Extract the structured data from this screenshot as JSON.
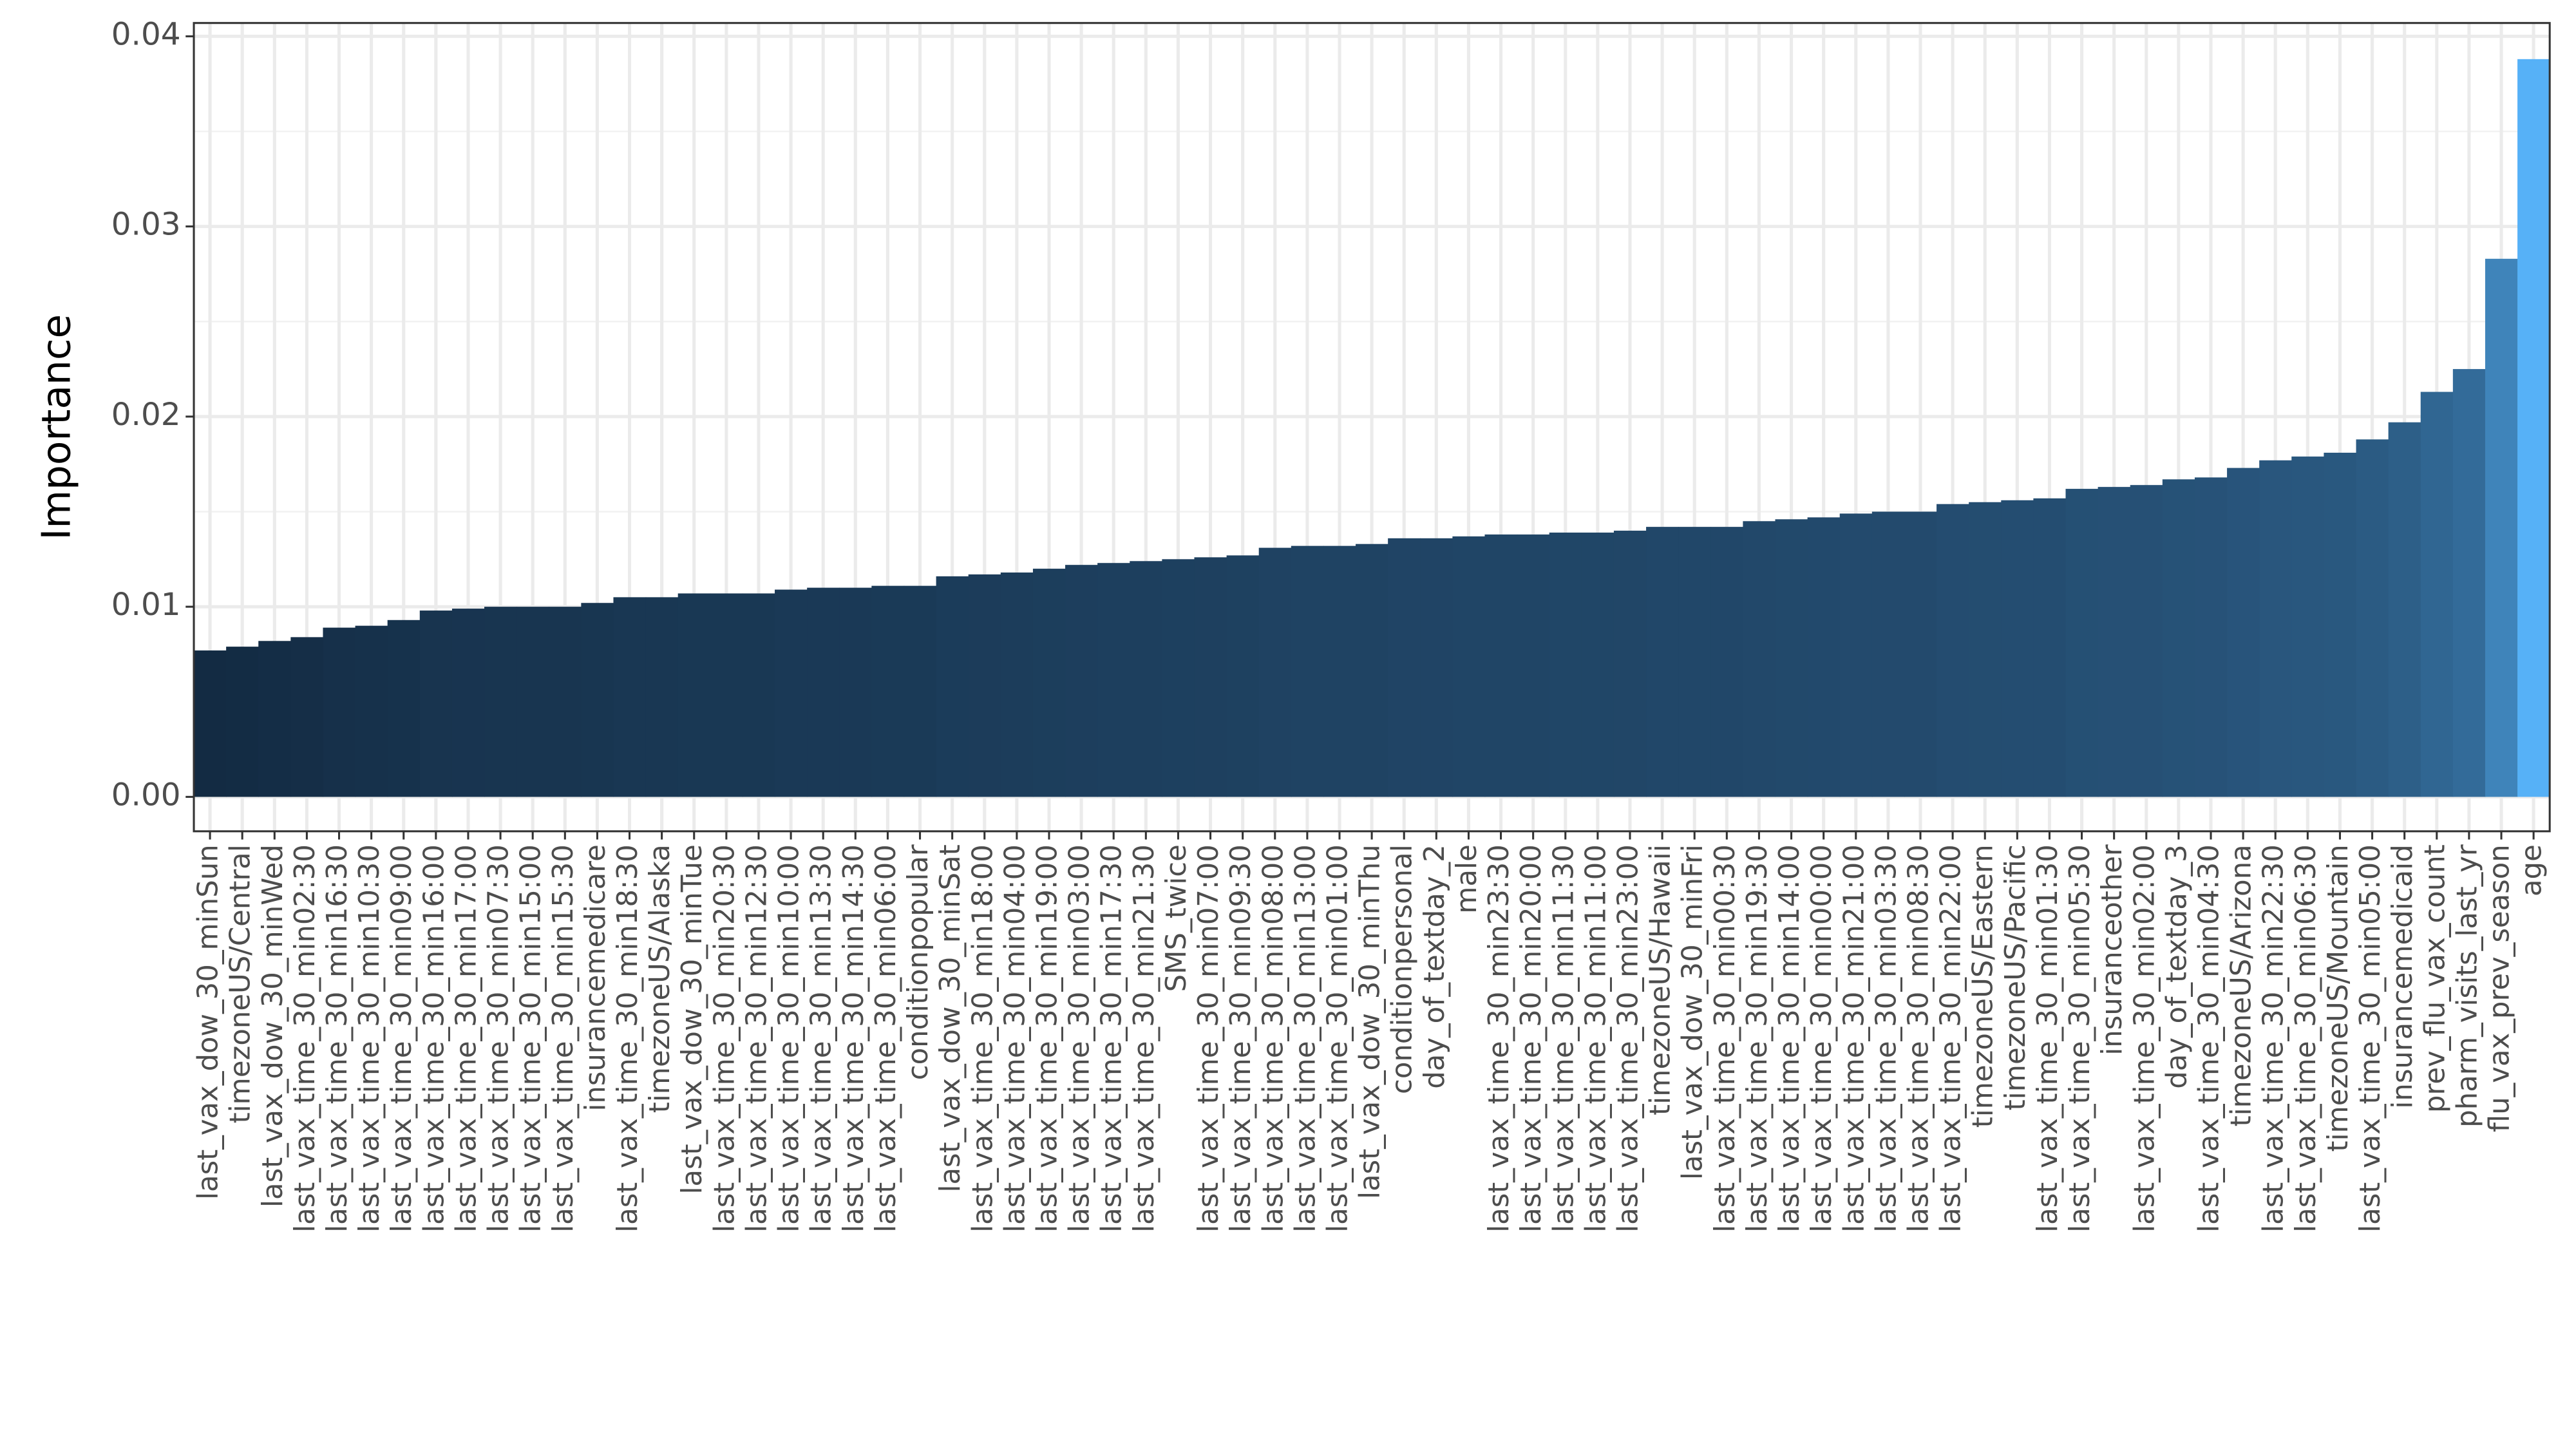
{
  "chart_data": {
    "type": "bar",
    "y_label": "Importance",
    "categories": [
      "last_vax_dow_30_minSun",
      "timezoneUS/Central",
      "last_vax_dow_30_minWed",
      "last_vax_time_30_min02:30",
      "last_vax_time_30_min16:30",
      "last_vax_time_30_min10:30",
      "last_vax_time_30_min09:00",
      "last_vax_time_30_min16:00",
      "last_vax_time_30_min17:00",
      "last_vax_time_30_min07:30",
      "last_vax_time_30_min15:00",
      "last_vax_time_30_min15:30",
      "insurancemedicare",
      "last_vax_time_30_min18:30",
      "timezoneUS/Alaska",
      "last_vax_dow_30_minTue",
      "last_vax_time_30_min20:30",
      "last_vax_time_30_min12:30",
      "last_vax_time_30_min10:00",
      "last_vax_time_30_min13:30",
      "last_vax_time_30_min14:30",
      "last_vax_time_30_min06:00",
      "conditionpopular",
      "last_vax_dow_30_minSat",
      "last_vax_time_30_min18:00",
      "last_vax_time_30_min04:00",
      "last_vax_time_30_min19:00",
      "last_vax_time_30_min03:00",
      "last_vax_time_30_min17:30",
      "last_vax_time_30_min21:30",
      "SMS_twice",
      "last_vax_time_30_min07:00",
      "last_vax_time_30_min09:30",
      "last_vax_time_30_min08:00",
      "last_vax_time_30_min13:00",
      "last_vax_time_30_min01:00",
      "last_vax_dow_30_minThu",
      "conditionpersonal",
      "day_of_textday_2",
      "male",
      "last_vax_time_30_min23:30",
      "last_vax_time_30_min20:00",
      "last_vax_time_30_min11:30",
      "last_vax_time_30_min11:00",
      "last_vax_time_30_min23:00",
      "timezoneUS/Hawaii",
      "last_vax_dow_30_minFri",
      "last_vax_time_30_min00:30",
      "last_vax_time_30_min19:30",
      "last_vax_time_30_min14:00",
      "last_vax_time_30_min00:00",
      "last_vax_time_30_min21:00",
      "last_vax_time_30_min03:30",
      "last_vax_time_30_min08:30",
      "last_vax_time_30_min22:00",
      "timezoneUS/Eastern",
      "timezoneUS/Pacific",
      "last_vax_time_30_min01:30",
      "last_vax_time_30_min05:30",
      "insuranceother",
      "last_vax_time_30_min02:00",
      "day_of_textday_3",
      "last_vax_time_30_min04:30",
      "timezoneUS/Arizona",
      "last_vax_time_30_min22:30",
      "last_vax_time_30_min06:30",
      "timezoneUS/Mountain",
      "last_vax_time_30_min05:00",
      "insurancemedicaid",
      "prev_flu_vax_count",
      "pharm_visits_last_yr",
      "flu_vax_prev_season",
      "age"
    ],
    "values": [
      0.0077,
      0.0079,
      0.0082,
      0.0084,
      0.0089,
      0.009,
      0.0093,
      0.0098,
      0.0099,
      0.01,
      0.01,
      0.01,
      0.0102,
      0.0105,
      0.0105,
      0.0107,
      0.0107,
      0.0107,
      0.0109,
      0.011,
      0.011,
      0.0111,
      0.0111,
      0.0116,
      0.0117,
      0.0118,
      0.012,
      0.0122,
      0.0123,
      0.0124,
      0.0125,
      0.0126,
      0.0127,
      0.0131,
      0.0132,
      0.0132,
      0.0133,
      0.0136,
      0.0136,
      0.0137,
      0.0138,
      0.0138,
      0.0139,
      0.0139,
      0.014,
      0.0142,
      0.0142,
      0.0142,
      0.0145,
      0.0146,
      0.0147,
      0.0149,
      0.015,
      0.015,
      0.0154,
      0.0155,
      0.0156,
      0.0157,
      0.0162,
      0.0163,
      0.0164,
      0.0167,
      0.0168,
      0.0173,
      0.0177,
      0.0179,
      0.0181,
      0.0188,
      0.0197,
      0.0213,
      0.0225,
      0.0283,
      0.0388
    ],
    "color_low": "#132b43",
    "color_high": "#56b1f7",
    "ylim": [
      -0.00181,
      0.0407
    ],
    "yticks": [
      {
        "value": 0,
        "label": "0.00"
      },
      0.01,
      0.02,
      0.03,
      0.04
    ],
    "grid": true
  }
}
